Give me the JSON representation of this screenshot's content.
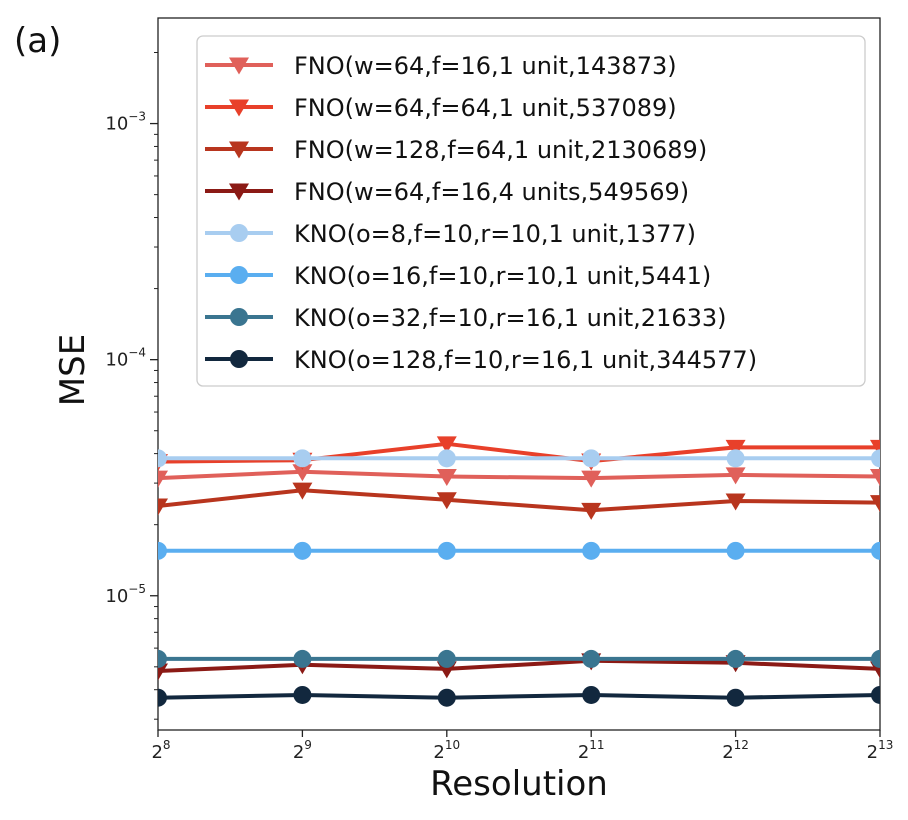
{
  "panel_label": "(a)",
  "chart_data": {
    "type": "line",
    "title": "",
    "xlabel": "Resolution",
    "ylabel": "MSE",
    "xscale": "log2",
    "yscale": "log10",
    "x": [
      256,
      512,
      1024,
      2048,
      4096,
      8192
    ],
    "x_tick_labels": [
      {
        "base": "2",
        "exp": "8"
      },
      {
        "base": "2",
        "exp": "9"
      },
      {
        "base": "2",
        "exp": "10"
      },
      {
        "base": "2",
        "exp": "11"
      },
      {
        "base": "2",
        "exp": "12"
      },
      {
        "base": "2",
        "exp": "13"
      }
    ],
    "y_tick_values": [
      1e-05,
      0.0001,
      0.001
    ],
    "y_tick_labels": [
      {
        "base": "10",
        "exp": "−5"
      },
      {
        "base": "10",
        "exp": "−4"
      },
      {
        "base": "10",
        "exp": "−3"
      }
    ],
    "xlim": [
      256,
      8192
    ],
    "ylim": [
      2.7e-06,
      0.0028
    ],
    "grid": false,
    "legend_position": "upper-right",
    "series": [
      {
        "name": "FNO(w=64,f=16,1 unit,143873)",
        "color": "#e0605a",
        "marker": "triangle-down",
        "values": [
          3.15e-05,
          3.35e-05,
          3.2e-05,
          3.15e-05,
          3.25e-05,
          3.2e-05
        ]
      },
      {
        "name": "FNO(w=64,f=64,1 unit,537089)",
        "color": "#e8402a",
        "marker": "triangle-down",
        "values": [
          3.7e-05,
          3.75e-05,
          4.4e-05,
          3.72e-05,
          4.25e-05,
          4.25e-05
        ]
      },
      {
        "name": "FNO(w=128,f=64,1 unit,2130689)",
        "color": "#b8351e",
        "marker": "triangle-down",
        "values": [
          2.4e-05,
          2.8e-05,
          2.55e-05,
          2.3e-05,
          2.52e-05,
          2.48e-05
        ]
      },
      {
        "name": "FNO(w=64,f=16,4 units,549569)",
        "color": "#8b1a15",
        "marker": "triangle-down",
        "values": [
          4.8e-06,
          5.1e-06,
          4.9e-06,
          5.3e-06,
          5.2e-06,
          4.9e-06
        ]
      },
      {
        "name": "KNO(o=8,f=10,r=10,1 unit,1377)",
        "color": "#a8cdf0",
        "marker": "circle",
        "values": [
          3.82e-05,
          3.82e-05,
          3.82e-05,
          3.82e-05,
          3.82e-05,
          3.82e-05
        ]
      },
      {
        "name": "KNO(o=16,f=10,r=10,1 unit,5441)",
        "color": "#5aaef0",
        "marker": "circle",
        "values": [
          1.55e-05,
          1.55e-05,
          1.55e-05,
          1.55e-05,
          1.55e-05,
          1.55e-05
        ]
      },
      {
        "name": "KNO(o=32,f=10,r=16,1 unit,21633)",
        "color": "#3a7590",
        "marker": "circle",
        "values": [
          5.4e-06,
          5.4e-06,
          5.4e-06,
          5.4e-06,
          5.4e-06,
          5.4e-06
        ]
      },
      {
        "name": "KNO(o=128,f=10,r=16,1 unit,344577)",
        "color": "#12283e",
        "marker": "circle",
        "values": [
          3.7e-06,
          3.8e-06,
          3.7e-06,
          3.8e-06,
          3.7e-06,
          3.8e-06
        ]
      }
    ]
  }
}
